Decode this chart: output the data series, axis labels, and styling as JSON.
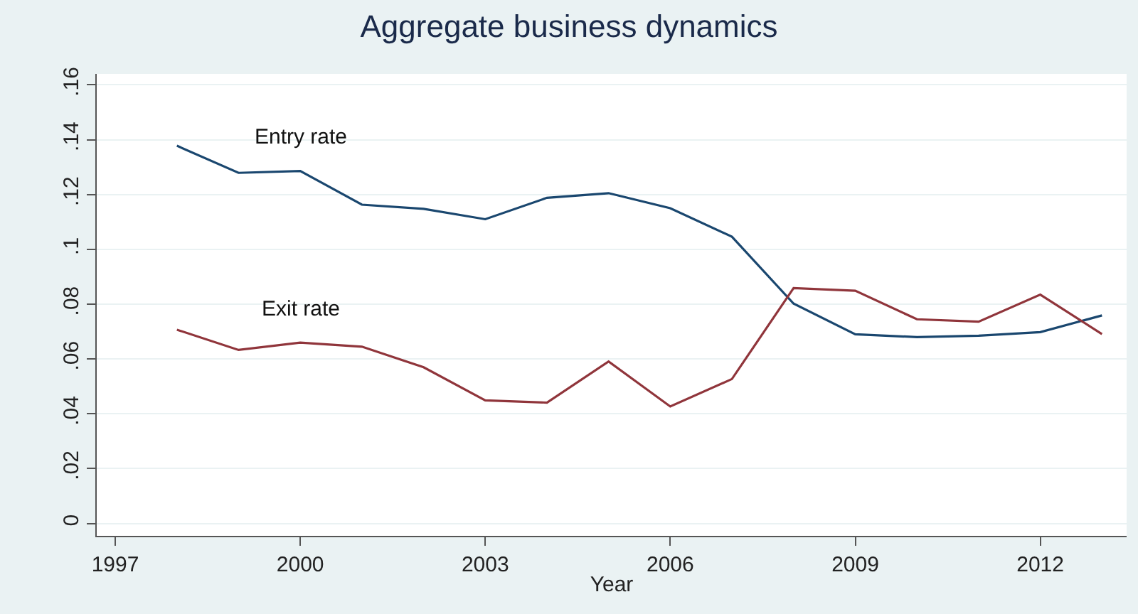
{
  "chart_data": {
    "type": "line",
    "title": "Aggregate business dynamics",
    "xlabel": "Year",
    "x": [
      1998,
      1999,
      2000,
      2001,
      2002,
      2003,
      2004,
      2005,
      2006,
      2007,
      2008,
      2009,
      2010,
      2011,
      2012,
      2013
    ],
    "series": [
      {
        "name": "Entry rate",
        "color": "#1a476f",
        "values": [
          0.1378,
          0.1279,
          0.1286,
          0.1163,
          0.1148,
          0.111,
          0.1188,
          0.1205,
          0.115,
          0.1046,
          0.0802,
          0.069,
          0.068,
          0.0685,
          0.0698,
          0.0759
        ]
      },
      {
        "name": "Exit rate",
        "color": "#90353b",
        "values": [
          0.0707,
          0.0633,
          0.066,
          0.0645,
          0.057,
          0.0449,
          0.0441,
          0.0591,
          0.0427,
          0.0527,
          0.0859,
          0.0849,
          0.0745,
          0.0736,
          0.0835,
          0.0691
        ]
      }
    ],
    "xlim": [
      1996.7,
      2013.4
    ],
    "xticks": [
      1997,
      2000,
      2003,
      2006,
      2009,
      2012
    ],
    "ylim": [
      -0.0045,
      0.164
    ],
    "yticks": [
      {
        "value": 0,
        "label": "0"
      },
      {
        "value": 0.02,
        "label": ".02"
      },
      {
        "value": 0.04,
        "label": ".04"
      },
      {
        "value": 0.06,
        "label": ".06"
      },
      {
        "value": 0.08,
        "label": ".08"
      },
      {
        "value": 0.1,
        "label": ".1"
      },
      {
        "value": 0.12,
        "label": ".12"
      },
      {
        "value": 0.14,
        "label": ".14"
      },
      {
        "value": 0.16,
        "label": ".16"
      }
    ],
    "grid": "y",
    "legend": false,
    "marker": "none",
    "line_style": "solid"
  }
}
